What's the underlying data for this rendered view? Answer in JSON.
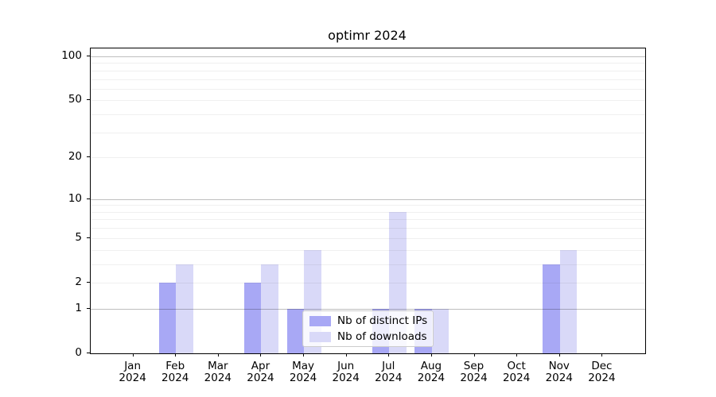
{
  "title": "optimr 2024",
  "chart_data": {
    "type": "bar",
    "title": "optimr 2024",
    "categories": [
      {
        "month": "Jan",
        "year": "2024"
      },
      {
        "month": "Feb",
        "year": "2024"
      },
      {
        "month": "Mar",
        "year": "2024"
      },
      {
        "month": "Apr",
        "year": "2024"
      },
      {
        "month": "May",
        "year": "2024"
      },
      {
        "month": "Jun",
        "year": "2024"
      },
      {
        "month": "Jul",
        "year": "2024"
      },
      {
        "month": "Aug",
        "year": "2024"
      },
      {
        "month": "Sep",
        "year": "2024"
      },
      {
        "month": "Oct",
        "year": "2024"
      },
      {
        "month": "Nov",
        "year": "2024"
      },
      {
        "month": "Dec",
        "year": "2024"
      }
    ],
    "series": [
      {
        "name": "Nb of distinct IPs",
        "color": "#a8a8f5",
        "values": [
          0,
          2,
          0,
          2,
          1,
          0,
          1,
          1,
          0,
          0,
          3,
          0
        ]
      },
      {
        "name": "Nb of downloads",
        "color": "#d9d9f8",
        "values": [
          0,
          3,
          0,
          3,
          4,
          0,
          8,
          1,
          0,
          0,
          4,
          0
        ]
      }
    ],
    "yscale": "log10(1+x)",
    "ytick_values": [
      0,
      1,
      2,
      5,
      10,
      20,
      50,
      100
    ],
    "ytick_labels": [
      "0",
      "1",
      "2",
      "5",
      "10",
      "20",
      "50",
      "100"
    ],
    "major_gridlines": [
      1,
      10,
      100
    ],
    "minor_gridlines": [
      2,
      3,
      4,
      5,
      6,
      7,
      8,
      9,
      20,
      30,
      40,
      50,
      60,
      70,
      80,
      90
    ],
    "ylim": [
      0,
      113
    ],
    "grid": "on",
    "legend_position": "lower center",
    "xlabel": "",
    "ylabel": ""
  }
}
